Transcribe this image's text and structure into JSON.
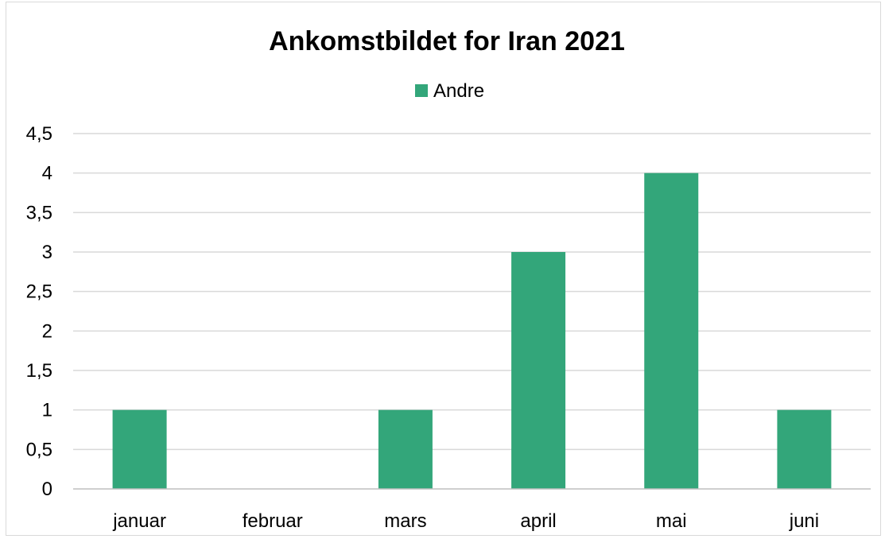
{
  "chart_data": {
    "type": "bar",
    "title": "Ankomstbildet for Iran 2021",
    "categories": [
      "januar",
      "februar",
      "mars",
      "april",
      "mai",
      "juni"
    ],
    "series": [
      {
        "name": "Andre",
        "color": "#33a67a",
        "values": [
          1,
          0,
          1,
          3,
          4,
          1
        ]
      }
    ],
    "xlabel": "",
    "ylabel": "",
    "ylim": [
      0,
      4.5
    ],
    "yticks": [
      "0",
      "0,5",
      "1",
      "1,5",
      "2",
      "2,5",
      "3",
      "3,5",
      "4",
      "4,5"
    ],
    "grid": true,
    "legend_position": "top"
  }
}
